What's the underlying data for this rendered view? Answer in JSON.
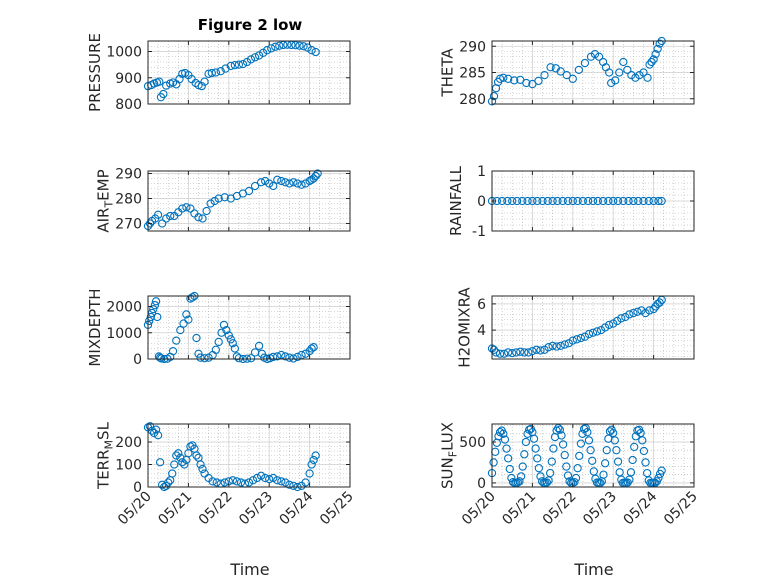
{
  "figure": {
    "title": "Figure 2 low",
    "x_label": "Time"
  },
  "colors": {
    "marker": "#0072bd",
    "axis": "#262626",
    "grid": "#b0b0b0"
  },
  "chart_data": [
    {
      "type": "scatter",
      "panel": "pressure",
      "ylabel_main": "PRESSURE",
      "ylabel_sub": "",
      "ylim": [
        800,
        1040
      ],
      "yticks": [
        800,
        900,
        1000
      ],
      "ytick_labels": [
        "800",
        "900",
        "1000"
      ],
      "grid": true,
      "minor_grid": true,
      "x": [
        20.0,
        20.08,
        20.15,
        20.22,
        20.28,
        20.32,
        20.38,
        20.45,
        20.55,
        20.62,
        20.7,
        20.78,
        20.85,
        20.92,
        21.0,
        21.08,
        21.18,
        21.25,
        21.33,
        21.4,
        21.5,
        21.58,
        21.68,
        21.8,
        21.92,
        22.05,
        22.15,
        22.25,
        22.35,
        22.45,
        22.55,
        22.65,
        22.75,
        22.85,
        22.95,
        23.05,
        23.15,
        23.25,
        23.35,
        23.45,
        23.55,
        23.65,
        23.75,
        23.85,
        23.95,
        24.05,
        24.15
      ],
      "y": [
        868,
        872,
        878,
        882,
        885,
        826,
        838,
        870,
        878,
        882,
        875,
        895,
        915,
        918,
        910,
        895,
        880,
        872,
        868,
        885,
        915,
        918,
        920,
        925,
        935,
        945,
        948,
        950,
        952,
        960,
        970,
        978,
        985,
        995,
        1005,
        1012,
        1018,
        1022,
        1025,
        1026,
        1025,
        1024,
        1022,
        1020,
        1015,
        1005,
        998
      ]
    },
    {
      "type": "scatter",
      "panel": "theta",
      "ylabel_main": "THETA",
      "ylabel_sub": "",
      "ylim": [
        279,
        291
      ],
      "yticks": [
        280,
        285,
        290
      ],
      "ytick_labels": [
        "280",
        "285",
        "290"
      ],
      "grid": true,
      "minor_grid": true,
      "x": [
        20.0,
        20.05,
        20.1,
        20.15,
        20.2,
        20.28,
        20.4,
        20.55,
        20.7,
        20.85,
        21.0,
        21.15,
        21.3,
        21.45,
        21.58,
        21.7,
        21.85,
        22.0,
        22.15,
        22.3,
        22.45,
        22.55,
        22.65,
        22.75,
        22.82,
        22.9,
        22.95,
        23.05,
        23.15,
        23.25,
        23.35,
        23.45,
        23.55,
        23.65,
        23.75,
        23.85,
        23.9,
        23.95,
        24.0,
        24.05,
        24.1,
        24.15,
        24.2
      ],
      "y": [
        279.5,
        280.5,
        282.0,
        283.2,
        283.8,
        284.0,
        283.8,
        283.5,
        283.6,
        283.0,
        282.8,
        283.4,
        284.5,
        286.0,
        285.8,
        285.2,
        284.5,
        283.8,
        285.5,
        286.8,
        288.0,
        288.5,
        288.0,
        287.0,
        286.0,
        285.0,
        283.0,
        283.5,
        285.0,
        287.0,
        285.5,
        284.5,
        284.0,
        284.5,
        285.0,
        284.0,
        286.5,
        287.0,
        287.5,
        288.5,
        289.5,
        290.5,
        291.0
      ]
    },
    {
      "type": "scatter",
      "panel": "air_temp",
      "ylabel_main": "AIR",
      "ylabel_sub": "T",
      "ylabel_tail": "EMP",
      "ylim": [
        267,
        291
      ],
      "yticks": [
        270,
        280,
        290
      ],
      "ytick_labels": [
        "270",
        "280",
        "290"
      ],
      "grid": true,
      "minor_grid": true,
      "x": [
        20.0,
        20.05,
        20.1,
        20.18,
        20.25,
        20.35,
        20.45,
        20.55,
        20.65,
        20.75,
        20.85,
        20.95,
        21.05,
        21.15,
        21.25,
        21.35,
        21.45,
        21.55,
        21.65,
        21.75,
        21.9,
        22.05,
        22.2,
        22.35,
        22.5,
        22.65,
        22.8,
        22.9,
        23.0,
        23.1,
        23.2,
        23.3,
        23.4,
        23.5,
        23.6,
        23.7,
        23.8,
        23.9,
        24.0,
        24.05,
        24.1,
        24.15,
        24.2
      ],
      "y": [
        269,
        270,
        271,
        272,
        273.5,
        270,
        272,
        273,
        273,
        274.5,
        276,
        276.5,
        276,
        274,
        272.5,
        272,
        275,
        278,
        279,
        280,
        280.5,
        280,
        281,
        282,
        283,
        285,
        286.5,
        287,
        286,
        285,
        287.5,
        287,
        286.5,
        286,
        286.5,
        286,
        285.5,
        286,
        287,
        287.5,
        288,
        289,
        290
      ]
    },
    {
      "type": "scatter",
      "panel": "rainfall",
      "ylabel_main": "RAINFALL",
      "ylabel_sub": "",
      "ylim": [
        -1,
        1
      ],
      "yticks": [
        -1,
        0,
        1
      ],
      "ytick_labels": [
        "-1",
        "0",
        "1"
      ],
      "grid": true,
      "minor_grid": true,
      "x": [
        20.0,
        20.12,
        20.25,
        20.38,
        20.5,
        20.62,
        20.75,
        20.88,
        21.0,
        21.12,
        21.25,
        21.38,
        21.5,
        21.62,
        21.75,
        21.88,
        22.0,
        22.12,
        22.25,
        22.38,
        22.5,
        22.62,
        22.75,
        22.88,
        23.0,
        23.12,
        23.25,
        23.38,
        23.5,
        23.62,
        23.75,
        23.88,
        24.0,
        24.12,
        24.2
      ],
      "y": [
        0,
        0,
        0,
        0,
        0,
        0,
        0,
        0,
        0,
        0,
        0,
        0,
        0,
        0,
        0,
        0,
        0,
        0,
        0,
        0,
        0,
        0,
        0,
        0,
        0,
        0,
        0,
        0,
        0,
        0,
        0,
        0,
        0,
        0,
        0
      ]
    },
    {
      "type": "scatter",
      "panel": "mixdepth",
      "ylabel_main": "MIXDEPTH",
      "ylabel_sub": "",
      "ylim": [
        0,
        2400
      ],
      "yticks": [
        0,
        1000,
        2000
      ],
      "ytick_labels": [
        "0",
        "1000",
        "2000"
      ],
      "grid": true,
      "minor_grid": true,
      "x": [
        20.0,
        20.03,
        20.07,
        20.1,
        20.13,
        20.17,
        20.2,
        20.23,
        20.27,
        20.3,
        20.33,
        20.4,
        20.48,
        20.55,
        20.62,
        20.7,
        20.8,
        20.88,
        20.95,
        21.0,
        21.05,
        21.1,
        21.15,
        21.2,
        21.25,
        21.3,
        21.4,
        21.5,
        21.6,
        21.68,
        21.75,
        21.82,
        21.88,
        21.94,
        22.0,
        22.05,
        22.1,
        22.15,
        22.2,
        22.25,
        22.35,
        22.45,
        22.55,
        22.65,
        22.75,
        22.82,
        22.88,
        22.95,
        23.02,
        23.1,
        23.2,
        23.3,
        23.4,
        23.5,
        23.6,
        23.7,
        23.8,
        23.9,
        24.0,
        24.05,
        24.1
      ],
      "y": [
        1300,
        1450,
        1600,
        1750,
        1900,
        2050,
        2200,
        1600,
        100,
        50,
        20,
        0,
        10,
        80,
        300,
        700,
        1100,
        1350,
        1700,
        1500,
        2300,
        2350,
        2400,
        800,
        200,
        50,
        30,
        50,
        150,
        350,
        650,
        1000,
        1300,
        1100,
        900,
        750,
        600,
        400,
        100,
        30,
        0,
        10,
        30,
        250,
        500,
        200,
        50,
        0,
        30,
        80,
        100,
        150,
        100,
        50,
        20,
        80,
        150,
        200,
        300,
        400,
        450
      ]
    },
    {
      "type": "scatter",
      "panel": "h2omixra",
      "ylabel_main": "H2OMIXRA",
      "ylabel_sub": "",
      "ylim": [
        1.8,
        6.6
      ],
      "yticks": [
        4,
        6
      ],
      "ytick_labels": [
        "4",
        "6"
      ],
      "grid": true,
      "minor_grid": true,
      "x": [
        20.0,
        20.05,
        20.1,
        20.2,
        20.3,
        20.4,
        20.5,
        20.6,
        20.7,
        20.8,
        20.9,
        21.0,
        21.1,
        21.2,
        21.3,
        21.4,
        21.5,
        21.6,
        21.7,
        21.8,
        21.9,
        22.0,
        22.1,
        22.2,
        22.3,
        22.4,
        22.5,
        22.6,
        22.7,
        22.8,
        22.9,
        23.0,
        23.1,
        23.2,
        23.3,
        23.4,
        23.5,
        23.6,
        23.7,
        23.8,
        23.9,
        24.0,
        24.05,
        24.1,
        24.15,
        24.2
      ],
      "y": [
        2.6,
        2.5,
        2.3,
        2.2,
        2.2,
        2.3,
        2.25,
        2.3,
        2.35,
        2.3,
        2.3,
        2.4,
        2.5,
        2.45,
        2.5,
        2.7,
        2.8,
        2.75,
        2.8,
        2.9,
        3.0,
        3.2,
        3.3,
        3.4,
        3.5,
        3.7,
        3.8,
        3.9,
        4.0,
        4.2,
        4.4,
        4.5,
        4.7,
        4.9,
        5.0,
        5.2,
        5.3,
        5.4,
        5.5,
        5.3,
        5.5,
        5.6,
        5.8,
        6.0,
        6.1,
        6.3
      ]
    },
    {
      "type": "scatter",
      "panel": "terr_msl",
      "ylabel_main": "TERR",
      "ylabel_sub": "M",
      "ylabel_tail": "SL",
      "ylim": [
        0,
        280
      ],
      "yticks": [
        0,
        100,
        200
      ],
      "ytick_labels": [
        "0",
        "100",
        "200"
      ],
      "grid": true,
      "minor_grid": true,
      "x": [
        20.0,
        20.05,
        20.1,
        20.15,
        20.2,
        20.25,
        20.3,
        20.35,
        20.4,
        20.45,
        20.5,
        20.55,
        20.6,
        20.65,
        20.7,
        20.75,
        20.8,
        20.85,
        20.9,
        20.95,
        21.0,
        21.05,
        21.1,
        21.15,
        21.2,
        21.25,
        21.3,
        21.35,
        21.4,
        21.5,
        21.6,
        21.7,
        21.8,
        21.9,
        22.0,
        22.1,
        22.2,
        22.3,
        22.4,
        22.5,
        22.6,
        22.7,
        22.8,
        22.9,
        23.0,
        23.1,
        23.2,
        23.3,
        23.4,
        23.5,
        23.6,
        23.7,
        23.8,
        23.9,
        24.0,
        24.05,
        24.1,
        24.15
      ],
      "y": [
        265,
        270,
        250,
        240,
        255,
        230,
        110,
        10,
        0,
        5,
        20,
        30,
        60,
        100,
        140,
        150,
        130,
        110,
        100,
        120,
        150,
        180,
        185,
        170,
        140,
        130,
        100,
        80,
        60,
        40,
        25,
        20,
        15,
        20,
        25,
        30,
        25,
        20,
        15,
        20,
        30,
        40,
        50,
        40,
        35,
        40,
        30,
        25,
        20,
        10,
        5,
        0,
        5,
        20,
        60,
        100,
        120,
        140
      ]
    },
    {
      "type": "scatter",
      "panel": "sun_flux",
      "ylabel_main": "SUN",
      "ylabel_sub": "F",
      "ylabel_tail": "LUX",
      "ylim": [
        -50,
        720
      ],
      "yticks": [
        0,
        500
      ],
      "ytick_labels": [
        "0",
        "500"
      ],
      "grid": true,
      "minor_grid": true,
      "x": [
        20.0,
        20.04,
        20.08,
        20.12,
        20.16,
        20.2,
        20.24,
        20.28,
        20.32,
        20.36,
        20.4,
        20.44,
        20.48,
        20.52,
        20.56,
        20.6,
        20.64,
        20.68,
        20.72,
        20.76,
        20.8,
        20.84,
        20.88,
        20.92,
        20.96,
        21.0,
        21.04,
        21.08,
        21.12,
        21.16,
        21.2,
        21.24,
        21.28,
        21.32,
        21.36,
        21.4,
        21.44,
        21.48,
        21.52,
        21.56,
        21.6,
        21.64,
        21.68,
        21.72,
        21.76,
        21.8,
        21.84,
        21.88,
        21.92,
        21.96,
        22.0,
        22.04,
        22.08,
        22.12,
        22.16,
        22.2,
        22.24,
        22.28,
        22.32,
        22.36,
        22.4,
        22.44,
        22.48,
        22.52,
        22.56,
        22.6,
        22.64,
        22.68,
        22.72,
        22.76,
        22.8,
        22.84,
        22.88,
        22.92,
        22.96,
        23.0,
        23.04,
        23.08,
        23.12,
        23.16,
        23.2,
        23.24,
        23.28,
        23.32,
        23.36,
        23.4,
        23.44,
        23.48,
        23.52,
        23.56,
        23.6,
        23.64,
        23.68,
        23.72,
        23.76,
        23.8,
        23.84,
        23.88,
        23.92,
        23.96,
        24.0,
        24.04,
        24.08,
        24.12,
        24.16,
        24.2
      ],
      "y": [
        120,
        250,
        380,
        490,
        570,
        620,
        640,
        600,
        530,
        420,
        300,
        170,
        60,
        10,
        0,
        0,
        5,
        20,
        80,
        200,
        350,
        500,
        600,
        650,
        660,
        620,
        540,
        420,
        300,
        180,
        80,
        20,
        0,
        0,
        5,
        30,
        120,
        260,
        420,
        560,
        640,
        670,
        650,
        580,
        470,
        340,
        200,
        90,
        20,
        0,
        0,
        10,
        60,
        180,
        330,
        480,
        600,
        660,
        670,
        620,
        520,
        400,
        270,
        140,
        50,
        5,
        0,
        0,
        20,
        100,
        240,
        400,
        540,
        630,
        650,
        610,
        520,
        400,
        260,
        130,
        40,
        0,
        0,
        0,
        5,
        40,
        130,
        280,
        440,
        570,
        640,
        650,
        610,
        520,
        390,
        250,
        120,
        30,
        0,
        0,
        0,
        0,
        20,
        60,
        110,
        150
      ]
    }
  ],
  "x_axis": {
    "xlim": [
      20,
      25
    ],
    "xticks": [
      20,
      21,
      22,
      23,
      24,
      25
    ],
    "xtick_labels": [
      "05/20",
      "05/21",
      "05/22",
      "05/23",
      "05/24",
      "05/25"
    ]
  }
}
